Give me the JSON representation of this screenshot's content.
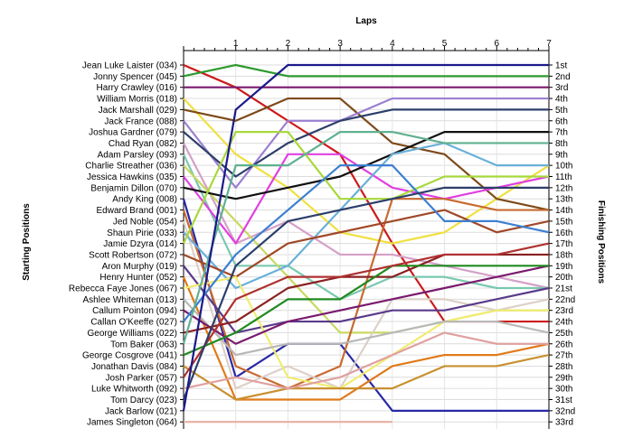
{
  "chart_data": {
    "type": "line",
    "title": "",
    "top_axis_label": "Laps",
    "left_axis_label": "Starting Positions",
    "right_axis_label": "Finishing Positions",
    "laps": [
      1,
      2,
      3,
      4,
      5,
      6,
      7
    ],
    "finishing_labels": [
      "1st",
      "2nd",
      "3rd",
      "4th",
      "5th",
      "6th",
      "7th",
      "8th",
      "9th",
      "10th",
      "11th",
      "12th",
      "13th",
      "14th",
      "15th",
      "16th",
      "17th",
      "18th",
      "19th",
      "20th",
      "21st",
      "22nd",
      "23rd",
      "24th",
      "25th",
      "26th",
      "27th",
      "28th",
      "29th",
      "30th",
      "31st",
      "32nd",
      "33rd"
    ],
    "grid": true,
    "position_range": [
      1,
      33
    ],
    "series": [
      {
        "name": "Jean Luke Laister (034)",
        "color": "#cc1a1a",
        "positions": [
          1,
          3,
          6,
          9,
          17,
          24,
          24,
          24
        ]
      },
      {
        "name": "Jonny Spencer (045)",
        "color": "#2e9a2e",
        "positions": [
          2,
          1,
          2,
          2,
          2,
          2,
          2,
          2
        ]
      },
      {
        "name": "Harry Crawley (016)",
        "color": "#7a1a6e",
        "positions": [
          3,
          3,
          3,
          3,
          3,
          3,
          3,
          3
        ]
      },
      {
        "name": "William Morris (018)",
        "color": "#f0e040",
        "positions": [
          4,
          9,
          12,
          16,
          17,
          16,
          13,
          10
        ]
      },
      {
        "name": "Jack Marshall (029)",
        "color": "#7d4a1a",
        "positions": [
          5,
          6,
          4,
          4,
          8,
          9,
          13,
          14
        ]
      },
      {
        "name": "Jack France (088)",
        "color": "#9b7fd0",
        "positions": [
          6,
          12,
          6,
          6,
          4,
          4,
          4,
          4
        ]
      },
      {
        "name": "Joshua Gardner (079)",
        "color": "#2c3e6a",
        "positions": [
          7,
          11,
          8,
          6,
          5,
          5,
          5,
          5
        ]
      },
      {
        "name": "Chad Ryan (082)",
        "color": "#d4a0c8",
        "positions": [
          8,
          17,
          15,
          18,
          18,
          19,
          20,
          21
        ]
      },
      {
        "name": "Adam Parsley (093)",
        "color": "#7ac8b0",
        "positions": [
          9,
          19,
          19,
          22,
          20,
          20,
          21,
          21
        ]
      },
      {
        "name": "Charlie Streather (036)",
        "color": "#c8d860",
        "positions": [
          10,
          15,
          20,
          25,
          25,
          24,
          23,
          23
        ]
      },
      {
        "name": "Jessica Hawkins (035)",
        "color": "#e040e0",
        "positions": [
          11,
          17,
          9,
          9,
          12,
          13,
          12,
          11
        ]
      },
      {
        "name": "Benjamin Dillon (070)",
        "color": "#101010",
        "positions": [
          12,
          13,
          12,
          11,
          9,
          7,
          7,
          7
        ]
      },
      {
        "name": "Andy King (008)",
        "color": "#2828a8",
        "positions": [
          13,
          29,
          26,
          26,
          32,
          32,
          32,
          32
        ]
      },
      {
        "name": "Edward Brand (001)",
        "color": "#c86a30",
        "positions": [
          14,
          28,
          30,
          28,
          13,
          13,
          14,
          14
        ]
      },
      {
        "name": "Jed Noble (054)",
        "color": "#ddd0c8",
        "positions": [
          15,
          30,
          28,
          30,
          22,
          22,
          23,
          22
        ]
      },
      {
        "name": "Shaun Pirie (033)",
        "color": "#6ab0d8",
        "positions": [
          16,
          21,
          19,
          14,
          9,
          8,
          10,
          10
        ]
      },
      {
        "name": "Jamie Dzyra (014)",
        "color": "#a8d83c",
        "positions": [
          17,
          7,
          7,
          13,
          13,
          11,
          11,
          11
        ]
      },
      {
        "name": "Scott Robertson (072)",
        "color": "#a04828",
        "positions": [
          18,
          20,
          17,
          16,
          15,
          14,
          16,
          15
        ]
      },
      {
        "name": "Aron Murphy (019)",
        "color": "#5a3a8a",
        "positions": [
          19,
          25,
          24,
          24,
          23,
          23,
          22,
          21
        ]
      },
      {
        "name": "Henry Hunter (052)",
        "color": "#e07a1a",
        "positions": [
          20,
          31,
          31,
          31,
          28,
          27,
          27,
          26
        ]
      },
      {
        "name": "Rebecca Faye Jones (067)",
        "color": "#f0ec70",
        "positions": [
          21,
          20,
          29,
          30,
          27,
          24,
          23,
          23
        ]
      },
      {
        "name": "Ashlee Whiteman (013)",
        "color": "#b8b8b8",
        "positions": [
          22,
          27,
          26,
          26,
          25,
          24,
          24,
          25
        ]
      },
      {
        "name": "Callum Pointon (094)",
        "color": "#7a1a6e",
        "positions": [
          23,
          26,
          24,
          23,
          22,
          21,
          20,
          19
        ]
      },
      {
        "name": "Callan O'Keeffe (027)",
        "color": "#3c7fd0",
        "positions": [
          24,
          18,
          14,
          10,
          10,
          15,
          15,
          16
        ]
      },
      {
        "name": "George Williams (022)",
        "color": "#8a2020",
        "positions": [
          25,
          24,
          21,
          20,
          20,
          18,
          18,
          18
        ]
      },
      {
        "name": "Tom Baker (063)",
        "color": "#60b090",
        "positions": [
          26,
          10,
          10,
          7,
          7,
          8,
          8,
          8
        ]
      },
      {
        "name": "George Cosgrove (041)",
        "color": "#208a20",
        "positions": [
          27,
          25,
          22,
          22,
          19,
          19,
          19,
          19
        ]
      },
      {
        "name": "Jonathan Davis (084)",
        "color": "#c89030",
        "positions": [
          28,
          31,
          30,
          30,
          30,
          28,
          28,
          27
        ]
      },
      {
        "name": "Josh Parker (057)",
        "color": "#b03030",
        "positions": [
          29,
          22,
          20,
          20,
          19,
          18,
          18,
          17
        ]
      },
      {
        "name": "Luke Whitworth (092)",
        "color": "#e0a0a0",
        "positions": [
          30,
          29,
          30,
          29,
          27,
          25,
          26,
          26
        ]
      },
      {
        "name": "Tom Darcy (023)",
        "color": "#2c3e6a",
        "positions": [
          31,
          19,
          15,
          14,
          13,
          12,
          12,
          12
        ]
      },
      {
        "name": "Jack Barlow (021)",
        "color": "#1a1a8a",
        "positions": [
          32,
          5,
          1,
          1,
          1,
          1,
          1,
          1
        ]
      },
      {
        "name": "James Singleton (064)",
        "color": "#e8b0a0",
        "positions": [
          33,
          33,
          33,
          33,
          33
        ]
      }
    ]
  }
}
